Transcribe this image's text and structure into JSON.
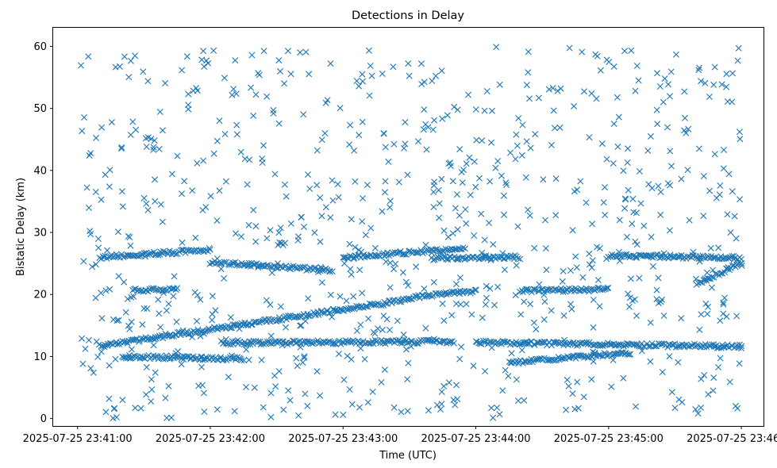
{
  "chart_data": {
    "type": "scatter",
    "title": "Detections in Delay",
    "xlabel": "Time (UTC)",
    "ylabel": "Bistatic Delay (km)",
    "x_ticks": [
      "2025-07-25 23:41:00",
      "2025-07-25 23:42:00",
      "2025-07-25 23:43:00",
      "2025-07-25 23:44:00",
      "2025-07-25 23:45:00",
      "2025-07-25 23:46:00"
    ],
    "y_ticks": [
      0,
      10,
      20,
      30,
      40,
      50,
      60
    ],
    "xlim": [
      "2025-07-25 23:40:49",
      "2025-07-25 23:46:10"
    ],
    "ylim": [
      -1.2,
      63
    ],
    "marker": "x",
    "grid": false,
    "color": "#1f77b4",
    "series": [
      {
        "x_start": "2025-07-25 23:41:01",
        "x_end": "2025-07-25 23:46:01",
        "tracks": [
          {
            "t0": "2025-07-25 23:41:10",
            "t1": "2025-07-25 23:43:30",
            "y0": 11.7,
            "y1": 19.2
          },
          {
            "t0": "2025-07-25 23:43:30",
            "t1": "2025-07-25 23:44:00",
            "y0": 19.5,
            "y1": 20.5
          },
          {
            "t0": "2025-07-25 23:42:00",
            "t1": "2025-07-25 23:42:55",
            "y0": 25.2,
            "y1": 23.9
          },
          {
            "t0": "2025-07-25 23:43:00",
            "t1": "2025-07-25 23:43:55",
            "y0": 26.0,
            "y1": 27.4
          },
          {
            "t0": "2025-07-25 23:41:10",
            "t1": "2025-07-25 23:42:00",
            "y0": 26.0,
            "y1": 27.2
          },
          {
            "t0": "2025-07-25 23:41:25",
            "t1": "2025-07-25 23:41:45",
            "y0": 20.7,
            "y1": 20.9
          },
          {
            "t0": "2025-07-25 23:42:05",
            "t1": "2025-07-25 23:43:50",
            "y0": 12.2,
            "y1": 12.4
          },
          {
            "t0": "2025-07-25 23:41:20",
            "t1": "2025-07-25 23:42:15",
            "y0": 10.0,
            "y1": 9.6
          },
          {
            "t0": "2025-07-25 23:44:15",
            "t1": "2025-07-25 23:45:10",
            "y0": 9.0,
            "y1": 10.6
          },
          {
            "t0": "2025-07-25 23:44:00",
            "t1": "2025-07-25 23:46:00",
            "y0": 12.3,
            "y1": 11.6
          },
          {
            "t0": "2025-07-25 23:44:20",
            "t1": "2025-07-25 23:45:00",
            "y0": 20.6,
            "y1": 20.8
          },
          {
            "t0": "2025-07-25 23:45:00",
            "t1": "2025-07-25 23:46:00",
            "y0": 26.3,
            "y1": 25.9
          },
          {
            "t0": "2025-07-25 23:45:40",
            "t1": "2025-07-25 23:46:00",
            "y0": 21.5,
            "y1": 25.2
          },
          {
            "t0": "2025-07-25 23:43:40",
            "t1": "2025-07-25 23:44:20",
            "y0": 25.8,
            "y1": 26.0
          }
        ],
        "background": {
          "count": 820,
          "y_range": [
            0,
            60
          ]
        }
      }
    ]
  }
}
